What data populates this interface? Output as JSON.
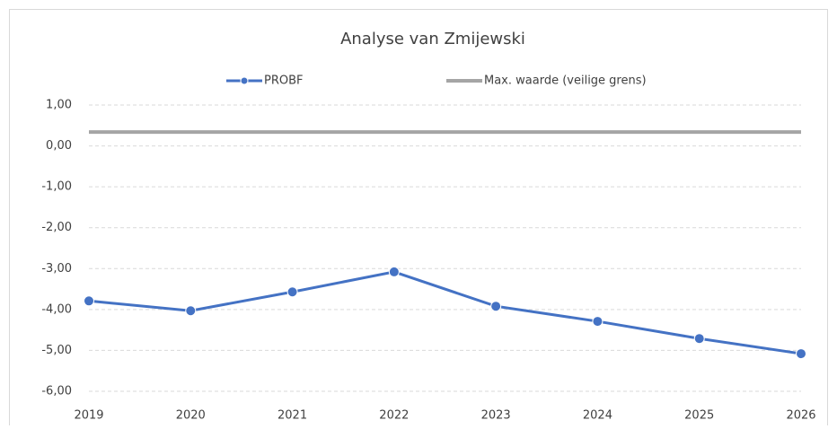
{
  "chart_data": {
    "type": "line",
    "title": "Analyse van Zmijewski",
    "categories": [
      "2019",
      "2020",
      "2021",
      "2022",
      "2023",
      "2024",
      "2025",
      "2026"
    ],
    "series": [
      {
        "name": "PROBF",
        "color": "#4472c4",
        "values": [
          -3.79,
          -4.03,
          -3.57,
          -3.08,
          -3.92,
          -4.29,
          -4.71,
          -5.08
        ]
      },
      {
        "name": "Max. waarde (veilige grens)",
        "color": "#a5a5a5",
        "values": [
          0.34,
          0.34,
          0.34,
          0.34,
          0.34,
          0.34,
          0.34,
          0.34
        ]
      }
    ],
    "ylim": [
      -6,
      1
    ],
    "yticks": [
      {
        "value": -6,
        "label": "-6,00"
      },
      {
        "value": -5,
        "label": "-5,00"
      },
      {
        "value": -4,
        "label": "-4,00"
      },
      {
        "value": -3,
        "label": "-3,00"
      },
      {
        "value": -2,
        "label": "-2,00"
      },
      {
        "value": -1,
        "label": "-1,00"
      },
      {
        "value": 0,
        "label": "0,00"
      },
      {
        "value": 1,
        "label": "1,00"
      }
    ],
    "grid": true,
    "legend": "top"
  }
}
